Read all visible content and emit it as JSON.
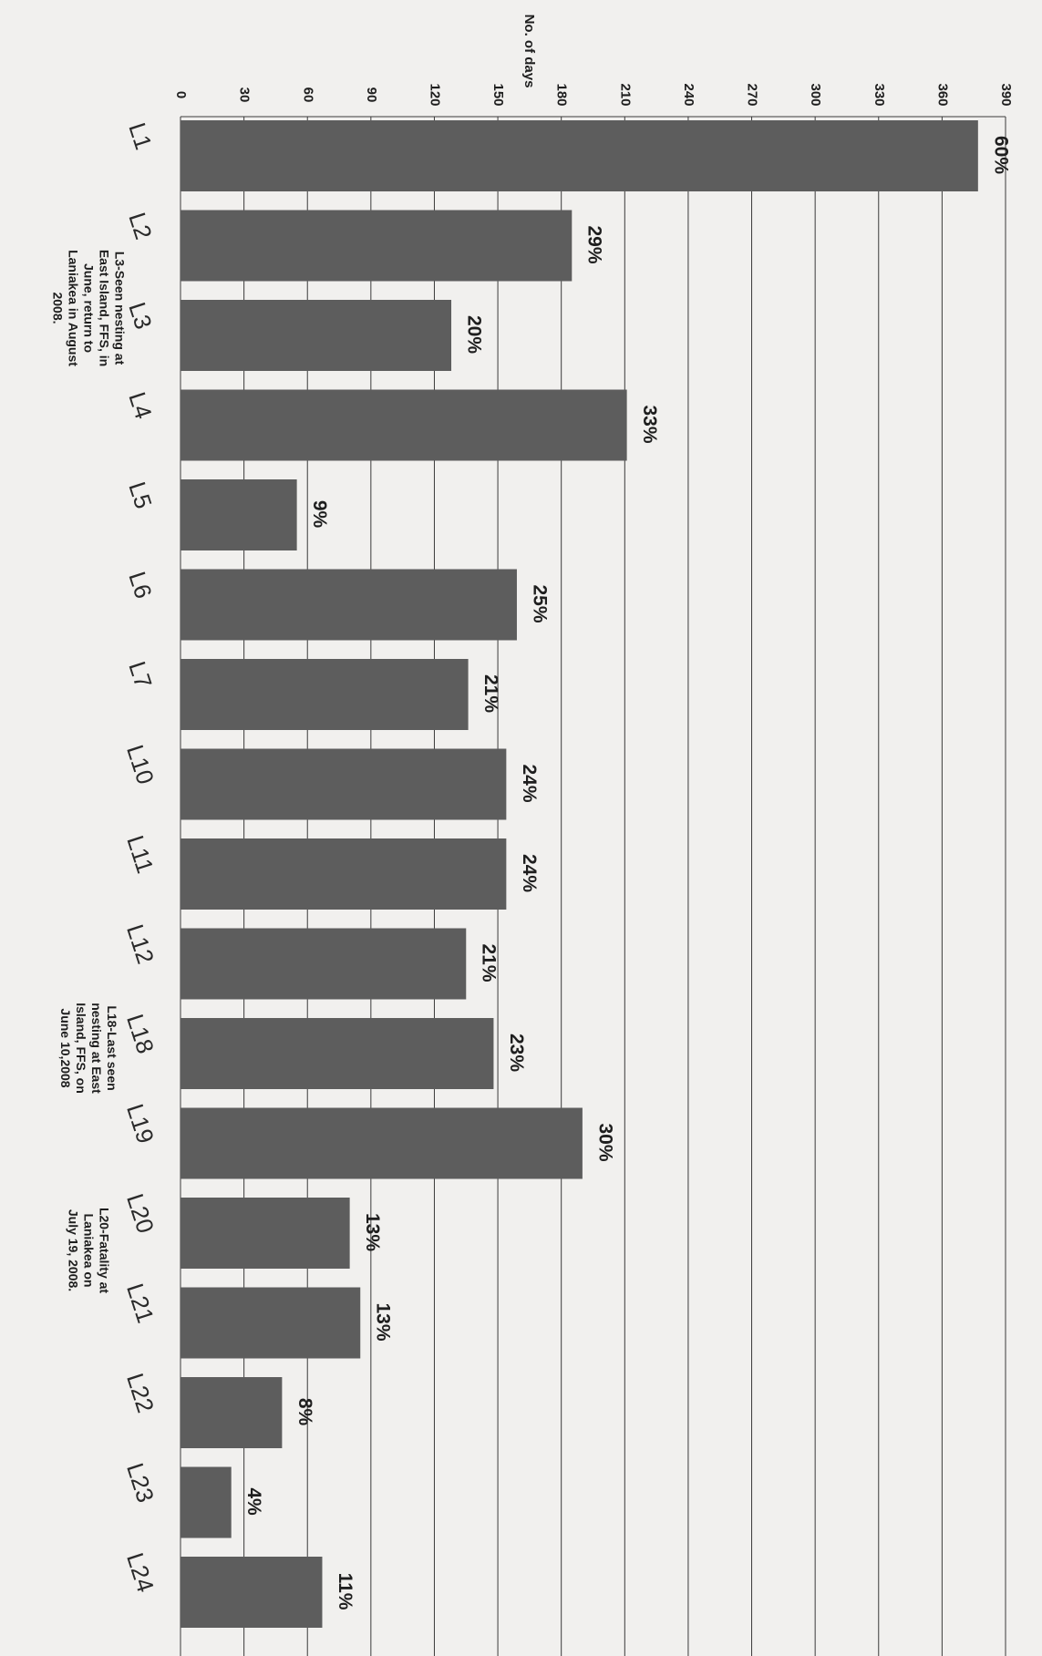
{
  "chart_data": {
    "type": "bar",
    "orientation": "horizontal",
    "title": "",
    "xlabel": "",
    "ylabel": "No. of days",
    "ylim": [
      0,
      390
    ],
    "y_ticks": [
      0,
      30,
      60,
      90,
      120,
      150,
      180,
      210,
      240,
      270,
      300,
      330,
      360,
      390
    ],
    "grid": true,
    "categories": [
      "L1",
      "L2",
      "L3",
      "L4",
      "L5",
      "L6",
      "L7",
      "L10",
      "L11",
      "L12",
      "L18",
      "L19",
      "L20",
      "L21",
      "L22",
      "L23",
      "L24"
    ],
    "values": [
      377,
      185,
      128,
      211,
      55,
      159,
      136,
      154,
      154,
      135,
      148,
      190,
      80,
      85,
      48,
      24,
      67
    ],
    "data_labels": [
      "60%",
      "29%",
      "20%",
      "33%",
      "9%",
      "25%",
      "21%",
      "24%",
      "24%",
      "21%",
      "23%",
      "30%",
      "13%",
      "13%",
      "8%",
      "4%",
      "11%"
    ],
    "annotations": [
      {
        "category": "L3",
        "lines": [
          "L3-Seen nesting at",
          "East Island, FFS, in",
          "June, return to",
          "Laniakea in August",
          "2008."
        ]
      },
      {
        "category": "L18",
        "lines": [
          "L18-Last seen",
          "nesting at East",
          "Island, FFS, on",
          "June 10,2008"
        ]
      },
      {
        "category": "L20",
        "lines": [
          "L20-Fatality at",
          "Laniakea on",
          "July 19, 2008."
        ]
      }
    ],
    "bar_color": "#5d5d5d"
  }
}
